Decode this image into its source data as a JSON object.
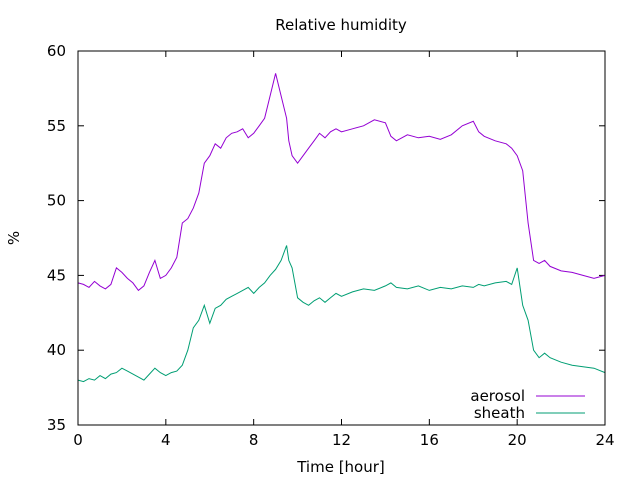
{
  "chart_data": {
    "type": "line",
    "title": "Relative humidity",
    "xlabel": "Time [hour]",
    "ylabel": "%",
    "xlim": [
      0,
      24
    ],
    "ylim": [
      35,
      60
    ],
    "xticks": [
      "0",
      "4",
      "8",
      "12",
      "16",
      "20",
      "24"
    ],
    "yticks": [
      "35",
      "40",
      "45",
      "50",
      "55",
      "60"
    ],
    "grid": false,
    "legend_position": "bottom-right",
    "series": [
      {
        "name": "aerosol",
        "color": "#9400d3",
        "x": [
          0,
          0.25,
          0.5,
          0.75,
          1,
          1.25,
          1.5,
          1.75,
          2,
          2.25,
          2.5,
          2.75,
          3,
          3.25,
          3.5,
          3.75,
          4,
          4.25,
          4.5,
          4.75,
          5,
          5.25,
          5.5,
          5.75,
          6,
          6.25,
          6.5,
          6.75,
          7,
          7.25,
          7.5,
          7.75,
          8,
          8.25,
          8.5,
          8.75,
          9,
          9.25,
          9.5,
          9.6,
          9.75,
          10,
          10.25,
          10.5,
          10.75,
          11,
          11.25,
          11.5,
          11.75,
          12,
          12.5,
          13,
          13.5,
          14,
          14.25,
          14.5,
          15,
          15.5,
          16,
          16.5,
          17,
          17.5,
          18,
          18.25,
          18.5,
          19,
          19.5,
          19.75,
          20,
          20.25,
          20.5,
          20.75,
          21,
          21.25,
          21.5,
          22,
          22.5,
          23,
          23.5,
          24
        ],
        "values": [
          44.5,
          44.4,
          44.2,
          44.6,
          44.3,
          44.1,
          44.4,
          45.5,
          45.2,
          44.8,
          44.5,
          44.0,
          44.3,
          45.2,
          46.0,
          44.8,
          45.0,
          45.5,
          46.2,
          48.5,
          48.8,
          49.5,
          50.5,
          52.5,
          53.0,
          53.8,
          53.5,
          54.2,
          54.5,
          54.6,
          54.8,
          54.2,
          54.5,
          55.0,
          55.5,
          57.0,
          58.5,
          57.0,
          55.5,
          54.0,
          53.0,
          52.5,
          53.0,
          53.5,
          54.0,
          54.5,
          54.2,
          54.6,
          54.8,
          54.6,
          54.8,
          55.0,
          55.4,
          55.2,
          54.3,
          54.0,
          54.4,
          54.2,
          54.3,
          54.1,
          54.4,
          55.0,
          55.3,
          54.6,
          54.3,
          54.0,
          53.8,
          53.5,
          53.0,
          52.0,
          48.5,
          46.0,
          45.8,
          46.0,
          45.6,
          45.3,
          45.2,
          45.0,
          44.8,
          45.0
        ]
      },
      {
        "name": "sheath",
        "color": "#009e73",
        "x": [
          0,
          0.25,
          0.5,
          0.75,
          1,
          1.25,
          1.5,
          1.75,
          2,
          2.25,
          2.5,
          2.75,
          3,
          3.25,
          3.5,
          3.75,
          4,
          4.25,
          4.5,
          4.75,
          5,
          5.25,
          5.5,
          5.75,
          6,
          6.25,
          6.5,
          6.75,
          7,
          7.25,
          7.5,
          7.75,
          8,
          8.25,
          8.5,
          8.75,
          9,
          9.25,
          9.5,
          9.6,
          9.75,
          10,
          10.25,
          10.5,
          10.75,
          11,
          11.25,
          11.5,
          11.75,
          12,
          12.5,
          13,
          13.5,
          14,
          14.25,
          14.5,
          15,
          15.5,
          16,
          16.5,
          17,
          17.5,
          18,
          18.25,
          18.5,
          19,
          19.5,
          19.75,
          20,
          20.25,
          20.5,
          20.75,
          21,
          21.25,
          21.5,
          22,
          22.5,
          23,
          23.5,
          24
        ],
        "values": [
          38.0,
          37.9,
          38.1,
          38.0,
          38.3,
          38.1,
          38.4,
          38.5,
          38.8,
          38.6,
          38.4,
          38.2,
          38.0,
          38.4,
          38.8,
          38.5,
          38.3,
          38.5,
          38.6,
          39.0,
          40.0,
          41.5,
          42.0,
          43.0,
          41.8,
          42.8,
          43.0,
          43.4,
          43.6,
          43.8,
          44.0,
          44.2,
          43.8,
          44.2,
          44.5,
          45.0,
          45.4,
          46.0,
          47.0,
          46.0,
          45.5,
          43.5,
          43.2,
          43.0,
          43.3,
          43.5,
          43.2,
          43.5,
          43.8,
          43.6,
          43.9,
          44.1,
          44.0,
          44.3,
          44.5,
          44.2,
          44.1,
          44.3,
          44.0,
          44.2,
          44.1,
          44.3,
          44.2,
          44.4,
          44.3,
          44.5,
          44.6,
          44.4,
          45.5,
          43.0,
          42.0,
          40.0,
          39.5,
          39.8,
          39.5,
          39.2,
          39.0,
          38.9,
          38.8,
          38.5
        ]
      }
    ]
  }
}
